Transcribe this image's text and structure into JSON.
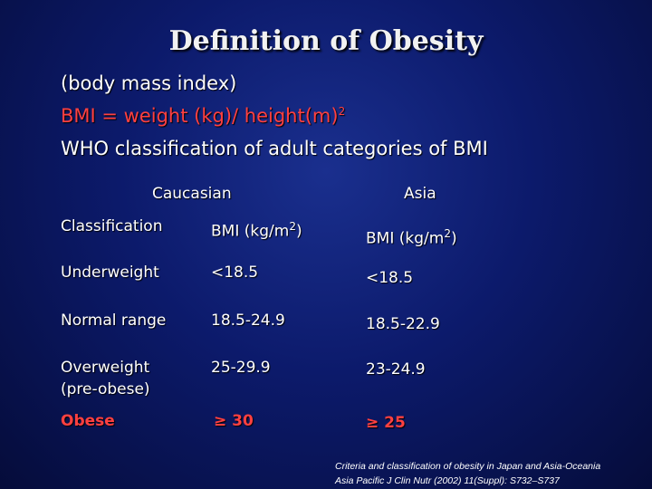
{
  "title": "Definition of Obesity",
  "subtitle": "(body mass index)",
  "formula": {
    "text": "BMI = weight (kg)/ height(m)",
    "sup": "2"
  },
  "who_line": "WHO classification of adult categories of BMI",
  "columns": {
    "caucasian": "Caucasian",
    "asia": "Asia"
  },
  "table": {
    "header": {
      "classification": "Classification",
      "bmi_label": "BMI (kg/m",
      "bmi_sup": "2",
      "bmi_close": ")"
    },
    "rows": [
      {
        "classification": "Underweight",
        "caucasian": "<18.5",
        "asia": "<18.5"
      },
      {
        "classification": "Normal range",
        "caucasian": "18.5-24.9",
        "asia": "18.5-22.9"
      },
      {
        "classification": "Overweight",
        "classification2": "(pre-obese)",
        "caucasian": "25-29.9",
        "asia": "23-24.9"
      },
      {
        "classification": "Obese",
        "caucasian": "≥ 30",
        "asia": "≥ 25"
      }
    ]
  },
  "citation": {
    "line1": "Criteria and classification of obesity in Japan and Asia-Oceania",
    "line2": "Asia Pacific J Clin Nutr (2002) 11(Suppl): S732–S737"
  },
  "colors": {
    "accent_red": "#ff4040",
    "background": "#0c1a6b"
  }
}
